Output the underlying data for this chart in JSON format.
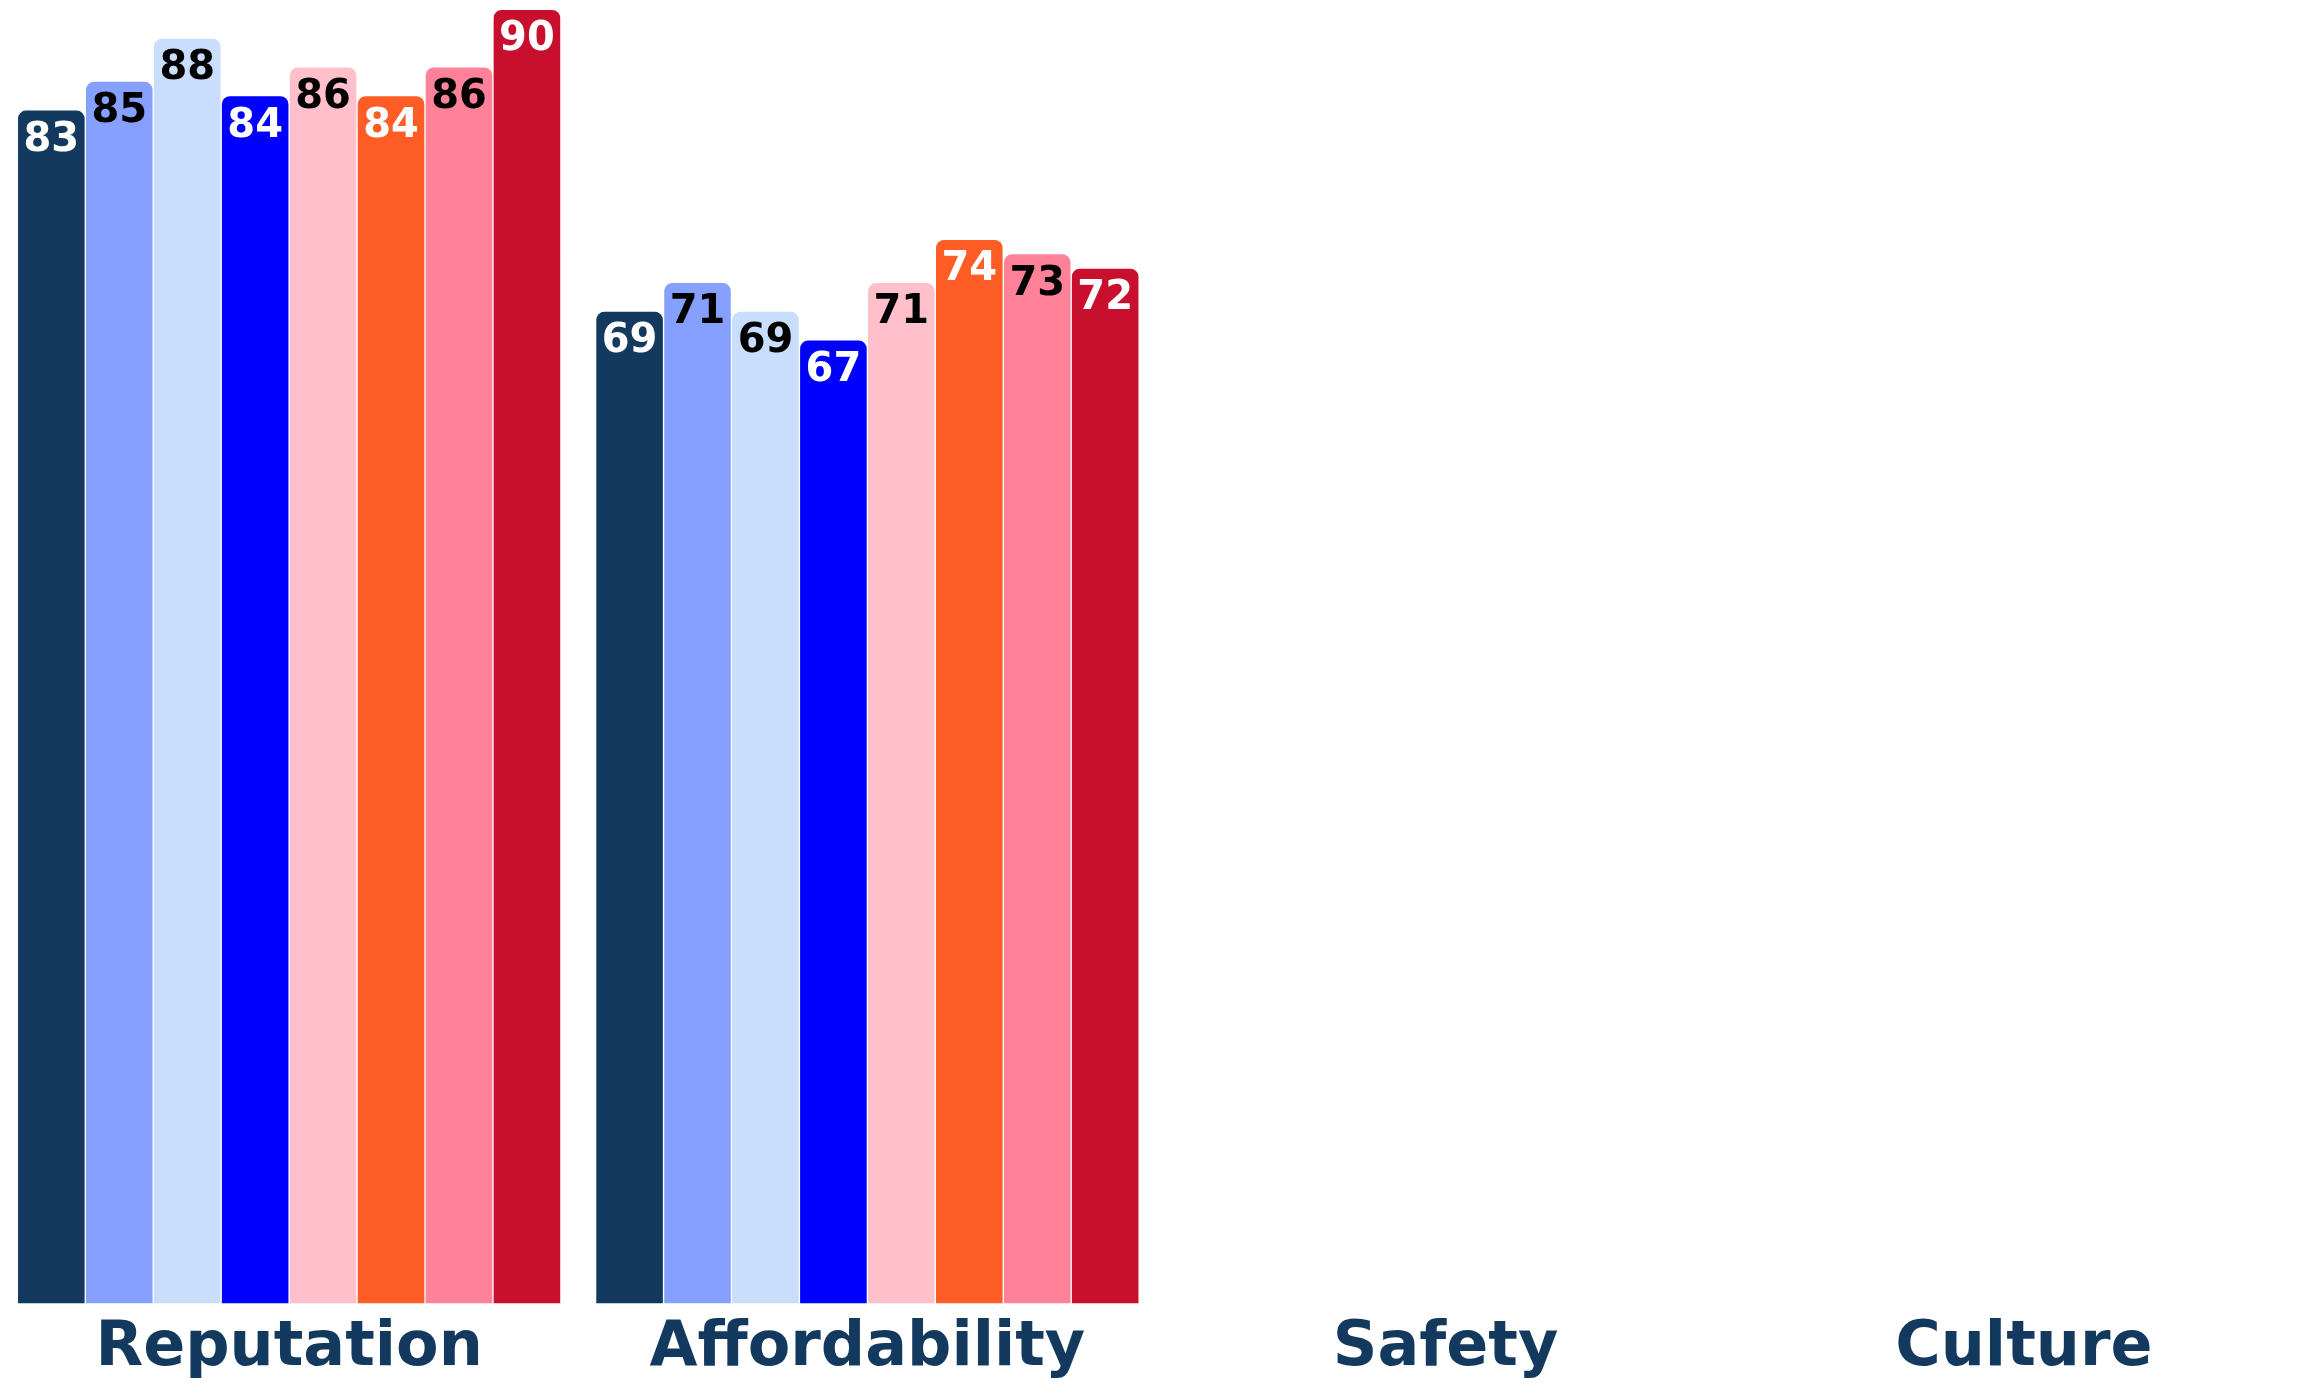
{
  "chart_data": {
    "type": "bar",
    "categories": [
      "Reputation",
      "Affordability",
      "Safety",
      "Culture"
    ],
    "series": [
      {
        "color": "#133a5e",
        "values": [
          83,
          69,
          null,
          null
        ]
      },
      {
        "color": "#85a0ff",
        "values": [
          85,
          71,
          null,
          null
        ]
      },
      {
        "color": "#c8defc",
        "values": [
          88,
          69,
          null,
          null
        ]
      },
      {
        "color": "#0000ff",
        "values": [
          84,
          67,
          null,
          null
        ]
      },
      {
        "color": "#ffc0cb",
        "values": [
          86,
          71,
          null,
          null
        ]
      },
      {
        "color": "#ff5c26",
        "values": [
          84,
          74,
          null,
          null
        ]
      },
      {
        "color": "#ff8299",
        "values": [
          86,
          73,
          null,
          null
        ]
      },
      {
        "color": "#c8102e",
        "values": [
          90,
          72,
          null,
          null
        ]
      }
    ],
    "ylim": [
      0,
      90
    ],
    "data_labels": true,
    "grid": false,
    "legend": false,
    "tick_labels": "x"
  }
}
